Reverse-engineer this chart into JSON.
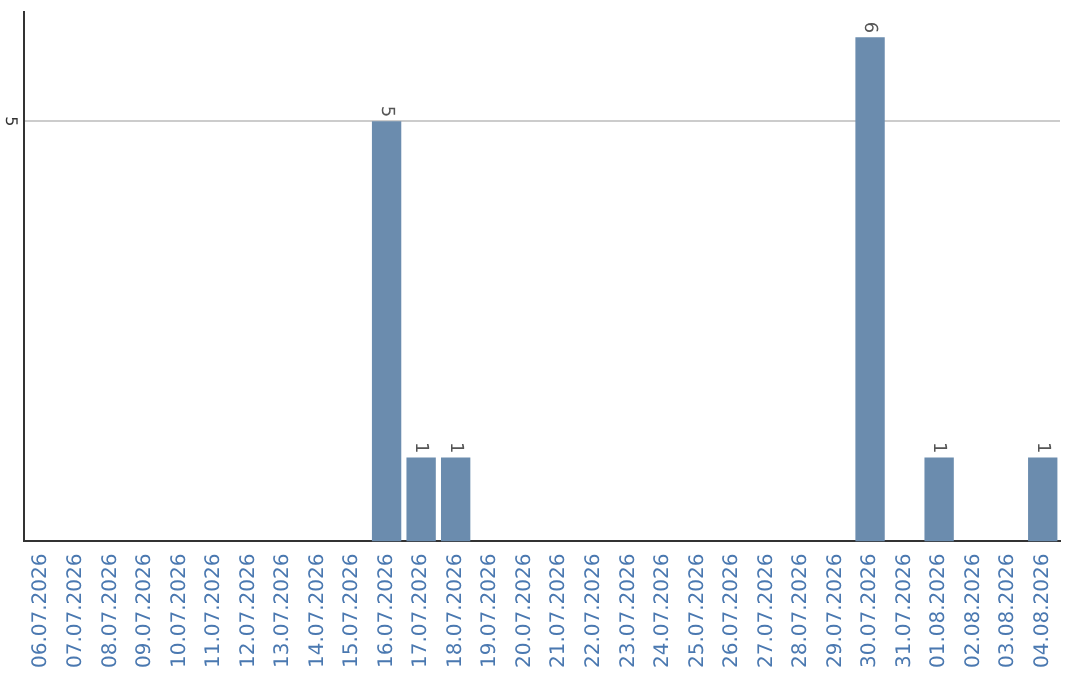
{
  "chart_data": {
    "type": "bar",
    "categories": [
      "06.07.2026",
      "07.07.2026",
      "08.07.2026",
      "09.07.2026",
      "10.07.2026",
      "11.07.2026",
      "12.07.2026",
      "13.07.2026",
      "14.07.2026",
      "15.07.2026",
      "16.07.2026",
      "17.07.2026",
      "18.07.2026",
      "19.07.2026",
      "20.07.2026",
      "21.07.2026",
      "22.07.2026",
      "23.07.2026",
      "24.07.2026",
      "25.07.2026",
      "26.07.2026",
      "27.07.2026",
      "28.07.2026",
      "29.07.2026",
      "30.07.2026",
      "31.07.2026",
      "01.08.2026",
      "02.08.2026",
      "03.08.2026",
      "04.08.2026"
    ],
    "values": [
      0,
      0,
      0,
      0,
      0,
      0,
      0,
      0,
      0,
      0,
      5,
      1,
      1,
      0,
      0,
      0,
      0,
      0,
      0,
      0,
      0,
      0,
      0,
      0,
      6,
      0,
      1,
      0,
      0,
      1
    ],
    "value_labels": [
      null,
      null,
      null,
      null,
      null,
      null,
      null,
      null,
      null,
      null,
      "5",
      "1",
      "1",
      null,
      null,
      null,
      null,
      null,
      null,
      null,
      null,
      null,
      null,
      null,
      "6",
      null,
      "1",
      null,
      null,
      "1"
    ],
    "color": "#6b8cae",
    "ylim": [
      0,
      6.3
    ],
    "yticks": [
      5
    ],
    "grid": "y",
    "legend": false
  }
}
